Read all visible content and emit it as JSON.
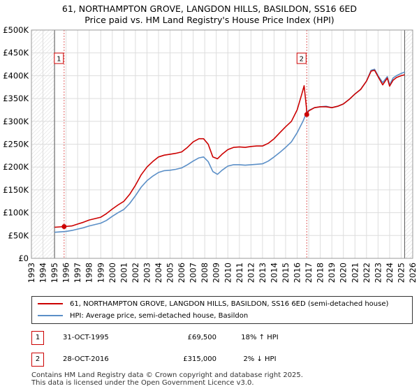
{
  "chart_data": {
    "type": "line",
    "title": "61, NORTHAMPTON GROVE, LANGDON HILLS, BASILDON, SS16 6ED",
    "subtitle": "Price paid vs. HM Land Registry's House Price Index (HPI)",
    "xlabel": "",
    "ylabel": "",
    "xlim": [
      1993,
      2026
    ],
    "ylim": [
      0,
      500000
    ],
    "y_ticks": [
      0,
      50000,
      100000,
      150000,
      200000,
      250000,
      300000,
      350000,
      400000,
      450000,
      500000
    ],
    "y_tick_labels": [
      "£0",
      "£50K",
      "£100K",
      "£150K",
      "£200K",
      "£250K",
      "£300K",
      "£350K",
      "£400K",
      "£450K",
      "£500K"
    ],
    "x_tick_labels": [
      "1993",
      "1994",
      "1995",
      "1996",
      "1997",
      "1998",
      "1999",
      "2000",
      "2001",
      "2002",
      "2003",
      "2004",
      "2005",
      "2006",
      "2007",
      "2008",
      "2009",
      "2010",
      "2011",
      "2012",
      "2013",
      "2014",
      "2015",
      "2016",
      "2017",
      "2018",
      "2019",
      "2020",
      "2021",
      "2022",
      "2023",
      "2024",
      "2025",
      "2026"
    ],
    "grid": true,
    "series": [
      {
        "name": "61, NORTHAMPTON GROVE, LANGDON HILLS, BASILDON, SS16 6ED (semi-detached house)",
        "color": "#cc0000",
        "x": [
          1995.0,
          1995.83,
          1996.5,
          1997.0,
          1997.5,
          1998.0,
          1998.5,
          1999.0,
          1999.5,
          2000.0,
          2000.5,
          2001.0,
          2001.5,
          2002.0,
          2002.5,
          2003.0,
          2003.5,
          2004.0,
          2004.5,
          2005.0,
          2005.5,
          2006.0,
          2006.5,
          2007.0,
          2007.5,
          2007.9,
          2008.3,
          2008.7,
          2009.1,
          2009.5,
          2010.0,
          2010.5,
          2011.0,
          2011.5,
          2012.0,
          2012.5,
          2013.0,
          2013.5,
          2014.0,
          2014.5,
          2015.0,
          2015.5,
          2016.0,
          2016.4,
          2016.6,
          2016.8,
          2016.83,
          2017.0,
          2017.5,
          2018.0,
          2018.5,
          2019.0,
          2019.5,
          2020.0,
          2020.5,
          2021.0,
          2021.5,
          2022.0,
          2022.4,
          2022.7,
          2023.0,
          2023.4,
          2023.8,
          2024.0,
          2024.3,
          2024.6,
          2025.0,
          2025.3
        ],
        "values": [
          68000,
          69500,
          71000,
          75000,
          79000,
          84000,
          87000,
          90000,
          98000,
          108000,
          117000,
          125000,
          140000,
          160000,
          183000,
          200000,
          212000,
          222000,
          226000,
          228000,
          230000,
          233000,
          243000,
          255000,
          262000,
          262000,
          250000,
          222000,
          218000,
          228000,
          238000,
          243000,
          244000,
          243000,
          245000,
          246000,
          246000,
          252000,
          262000,
          275000,
          288000,
          300000,
          325000,
          360000,
          378000,
          330000,
          315000,
          323000,
          330000,
          332000,
          332000,
          330000,
          333000,
          338000,
          348000,
          360000,
          370000,
          388000,
          410000,
          412000,
          398000,
          380000,
          395000,
          377000,
          390000,
          396000,
          400000,
          402000
        ]
      },
      {
        "name": "HPI: Average price, semi-detached house, Basildon",
        "color": "#5b8fc7",
        "x": [
          1995.0,
          1995.5,
          1996.0,
          1996.5,
          1997.0,
          1997.5,
          1998.0,
          1998.5,
          1999.0,
          1999.5,
          2000.0,
          2000.5,
          2001.0,
          2001.5,
          2002.0,
          2002.5,
          2003.0,
          2003.5,
          2004.0,
          2004.5,
          2005.0,
          2005.5,
          2006.0,
          2006.5,
          2007.0,
          2007.5,
          2007.9,
          2008.3,
          2008.7,
          2009.1,
          2009.5,
          2010.0,
          2010.5,
          2011.0,
          2011.5,
          2012.0,
          2012.5,
          2013.0,
          2013.5,
          2014.0,
          2014.5,
          2015.0,
          2015.5,
          2016.0,
          2016.5,
          2016.83,
          2017.0,
          2017.5,
          2018.0,
          2018.5,
          2019.0,
          2019.5,
          2020.0,
          2020.5,
          2021.0,
          2021.5,
          2022.0,
          2022.4,
          2022.7,
          2023.0,
          2023.4,
          2023.8,
          2024.0,
          2024.3,
          2024.6,
          2025.0,
          2025.3
        ],
        "values": [
          57000,
          58000,
          59000,
          61000,
          64000,
          67000,
          71000,
          74000,
          77000,
          83000,
          92000,
          100000,
          107000,
          120000,
          137000,
          156000,
          170000,
          180000,
          188000,
          192000,
          193000,
          195000,
          198000,
          205000,
          213000,
          220000,
          222000,
          212000,
          190000,
          184000,
          193000,
          202000,
          205000,
          205000,
          204000,
          205000,
          206000,
          207000,
          213000,
          222000,
          232000,
          243000,
          255000,
          275000,
          300000,
          320000,
          324000,
          330000,
          332000,
          333000,
          330000,
          333000,
          338000,
          348000,
          360000,
          370000,
          388000,
          412000,
          414000,
          400000,
          385000,
          398000,
          380000,
          395000,
          400000,
          405000,
          408000
        ]
      }
    ],
    "annotations": [
      {
        "label": "1",
        "x": 1995.83,
        "price": 69500
      },
      {
        "label": "2",
        "x": 2016.83,
        "price": 315000
      }
    ]
  },
  "legend": {
    "property_label": "61, NORTHAMPTON GROVE, LANGDON HILLS, BASILDON, SS16 6ED (semi-detached house)",
    "hpi_label": "HPI: Average price, semi-detached house, Basildon"
  },
  "transactions": [
    {
      "num": "1",
      "date": "31-OCT-1995",
      "price": "£69,500",
      "hpi": "18% ↑ HPI"
    },
    {
      "num": "2",
      "date": "28-OCT-2016",
      "price": "£315,000",
      "hpi": "2% ↓ HPI"
    }
  ],
  "footer": {
    "line1": "Contains HM Land Registry data © Crown copyright and database right 2025.",
    "line2": "This data is licensed under the Open Government Licence v3.0."
  }
}
